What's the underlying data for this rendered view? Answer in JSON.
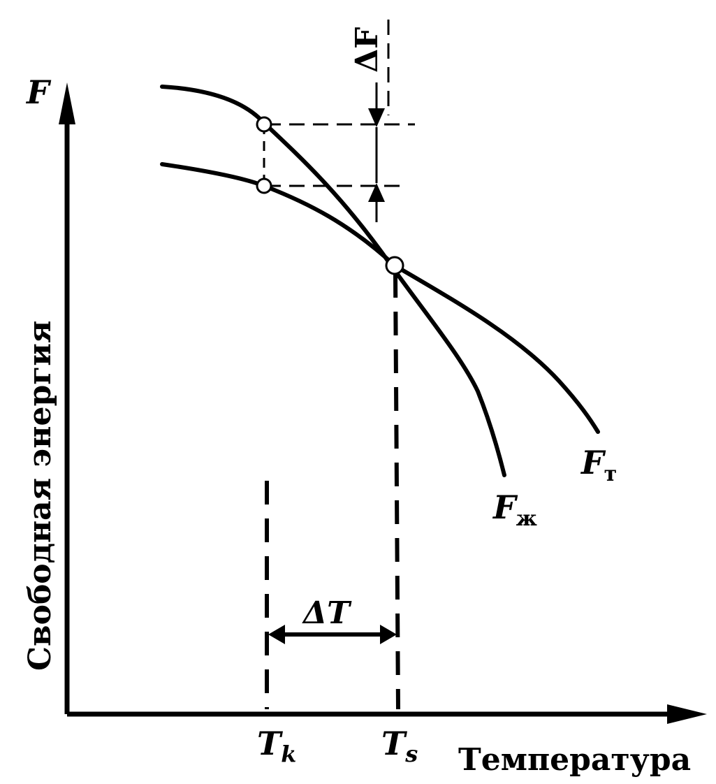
{
  "axes": {
    "y_symbol": "F",
    "y_title": "Свободная энергия",
    "x_title": "Температура"
  },
  "curves": {
    "solid": {
      "symbol": "F",
      "subscript": "т"
    },
    "liquid": {
      "symbol": "F",
      "subscript": "ж"
    }
  },
  "markers": {
    "tk": {
      "symbol": "T",
      "subscript": "k"
    },
    "ts": {
      "symbol": "T",
      "subscript": "s"
    }
  },
  "deltas": {
    "delta_f": "ΔF",
    "delta_t": "ΔT"
  },
  "colors": {
    "ink": "#000000",
    "background": "#ffffff"
  }
}
